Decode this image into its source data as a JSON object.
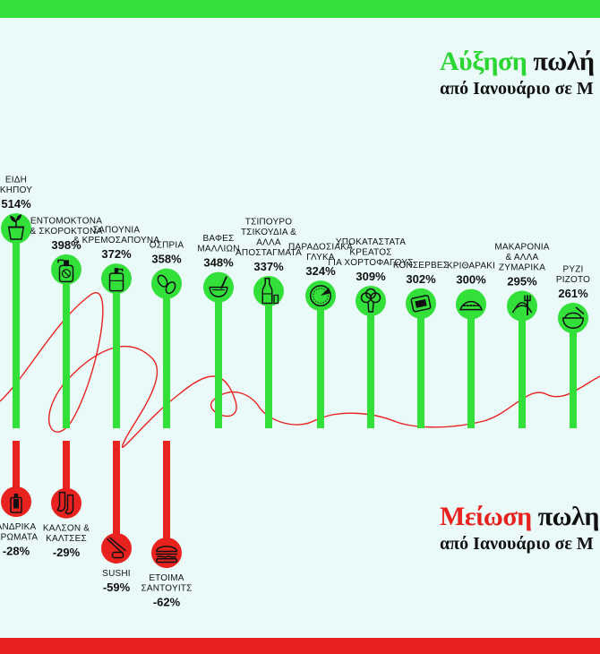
{
  "colors": {
    "increase": "#33e03a",
    "decrease": "#e8231f",
    "background": "#eafaf9",
    "icon_stroke": "#111111"
  },
  "header_increase": {
    "word1": "Αύξηση",
    "word2": "πωλή",
    "subtitle": "από Ιανουάριο σε Μ"
  },
  "header_decrease": {
    "word1": "Μείωση",
    "word2": "πωλη",
    "subtitle": "από Ιανουάριο σε Μ"
  },
  "chart_data": [
    {
      "type": "bar",
      "title": "Αύξηση πωλή",
      "subtitle": "από Ιανουάριο σε Μ",
      "unit": "%",
      "categories": [
        "ΕΙΔΗ ΚΗΠΟΥ",
        "ΕΝΤΟΜΟΚΤΟΝΑ & ΣΚΟΡΟΚΤΟΝΑ",
        "ΣΑΠΟΥΝΙΑ & ΚΡΕΜΟΣΑΠΟΥΝΑ",
        "ΟΣΠΡΙΑ",
        "ΒΑΦΕΣ ΜΑΛΛΙΩΝ",
        "ΤΣΙΠΟΥΡΟ ΤΣΙΚΟΥΔΙΑ & ΑΛΛΑ ΑΠΟΣΤΑΓΜΑΤΑ",
        "ΠΑΡΑΔΟΣΙΑΚΑ ΓΛΥΚΑ",
        "ΥΠΟΚΑΤΑΣΤΑΤΑ ΚΡΕΑΤΟΣ ΓΙΑ ΧΟΡΤΟΦΑΓΟΥΣ",
        "ΚΟΝΣΕΡΒΕΣ",
        "ΚΡΙΘΑΡΑΚΙ",
        "ΜΑΚΑΡΟΝΙΑ & ΑΛΛΑ ΖΥΜΑΡΙΚΑ",
        "ΡΥΖΙ ΡΙΖΟΤΟ"
      ],
      "label_lines": [
        [
          "ΕΙΔΗ",
          "ΚΗΠΟΥ"
        ],
        [
          "ΕΝΤΟΜΟΚΤΟΝΑ",
          "& ΣΚΟΡΟΚΤΟΝΑ"
        ],
        [
          "ΣΑΠΟΥΝΙΑ",
          "& ΚΡΕΜΟΣΑΠΟΥΝΑ"
        ],
        [
          "ΟΣΠΡΙΑ"
        ],
        [
          "ΒΑΦΕΣ",
          "ΜΑΛΛΙΩΝ"
        ],
        [
          "ΤΣΙΠΟΥΡΟ",
          "ΤΣΙΚΟΥΔΙΑ &",
          "ΑΛΛΑ",
          "ΑΠΟΣΤΑΓΜΑΤΑ"
        ],
        [
          "ΠΑΡΑΔΟΣΙΑΚΑ",
          "ΓΛΥΚΑ"
        ],
        [
          "ΥΠΟΚΑΤΑΣΤΑΤΑ",
          "ΚΡΕΑΤΟΣ",
          "ΓΙΑ ΧΟΡΤΟΦΑΓΟΥΣ"
        ],
        [
          "ΚΟΝΣΕΡΒΕΣ"
        ],
        [
          "ΚΡΙΘΑΡΑΚΙ"
        ],
        [
          "ΜΑΚΑΡΟΝΙΑ",
          "& ΑΛΛΑ",
          "ΖΥΜΑΡΙΚΑ"
        ],
        [
          "ΡΥΖΙ",
          "ΡΙΖΟΤΟ"
        ]
      ],
      "labels": [
        "514%",
        "398%",
        "372%",
        "358%",
        "348%",
        "337%",
        "324%",
        "309%",
        "302%",
        "300%",
        "295%",
        "261%"
      ],
      "values": [
        514,
        398,
        372,
        358,
        348,
        337,
        324,
        309,
        302,
        300,
        295,
        261
      ],
      "icons": [
        "plant-pot-icon",
        "spray-bottle-icon",
        "soap-dispenser-icon",
        "beans-icon",
        "hair-dye-bowl-icon",
        "bottles-icon",
        "pie-icon",
        "broccoli-icon",
        "tin-can-icon",
        "orzo-icon",
        "pasta-icon",
        "rice-bowl-icon"
      ],
      "color": "#33e03a"
    },
    {
      "type": "bar",
      "title": "Μείωση πωλη",
      "subtitle": "από Ιανουάριο σε Μ",
      "unit": "%",
      "categories": [
        "ΑΝΔΡΙΚΑ ΑΡΩΜΑΤΑ",
        "ΚΑΛΣΟΝ & ΚΑΛΤΣΕΣ",
        "SUSHI",
        "ΕΤΟΙΜΑ ΣΑΝΤΟΥΙΤΣ"
      ],
      "label_lines": [
        [
          "ΑΝΔΡΙΚΑ",
          "ΑΡΩΜΑΤΑ"
        ],
        [
          "ΚΑΛΣΟΝ &",
          "ΚΑΛΤΣΕΣ"
        ],
        [
          "SUSHI"
        ],
        [
          "ΕΤΟΙΜΑ",
          "ΣΑΝΤΟΥΙΤΣ"
        ]
      ],
      "labels": [
        "-28%",
        "-29%",
        "-59%",
        "-62%"
      ],
      "values": [
        -28,
        -29,
        -59,
        -62
      ],
      "icons": [
        "perfume-icon",
        "socks-icon",
        "sushi-icon",
        "sandwich-icon"
      ],
      "color": "#e8231f"
    }
  ]
}
